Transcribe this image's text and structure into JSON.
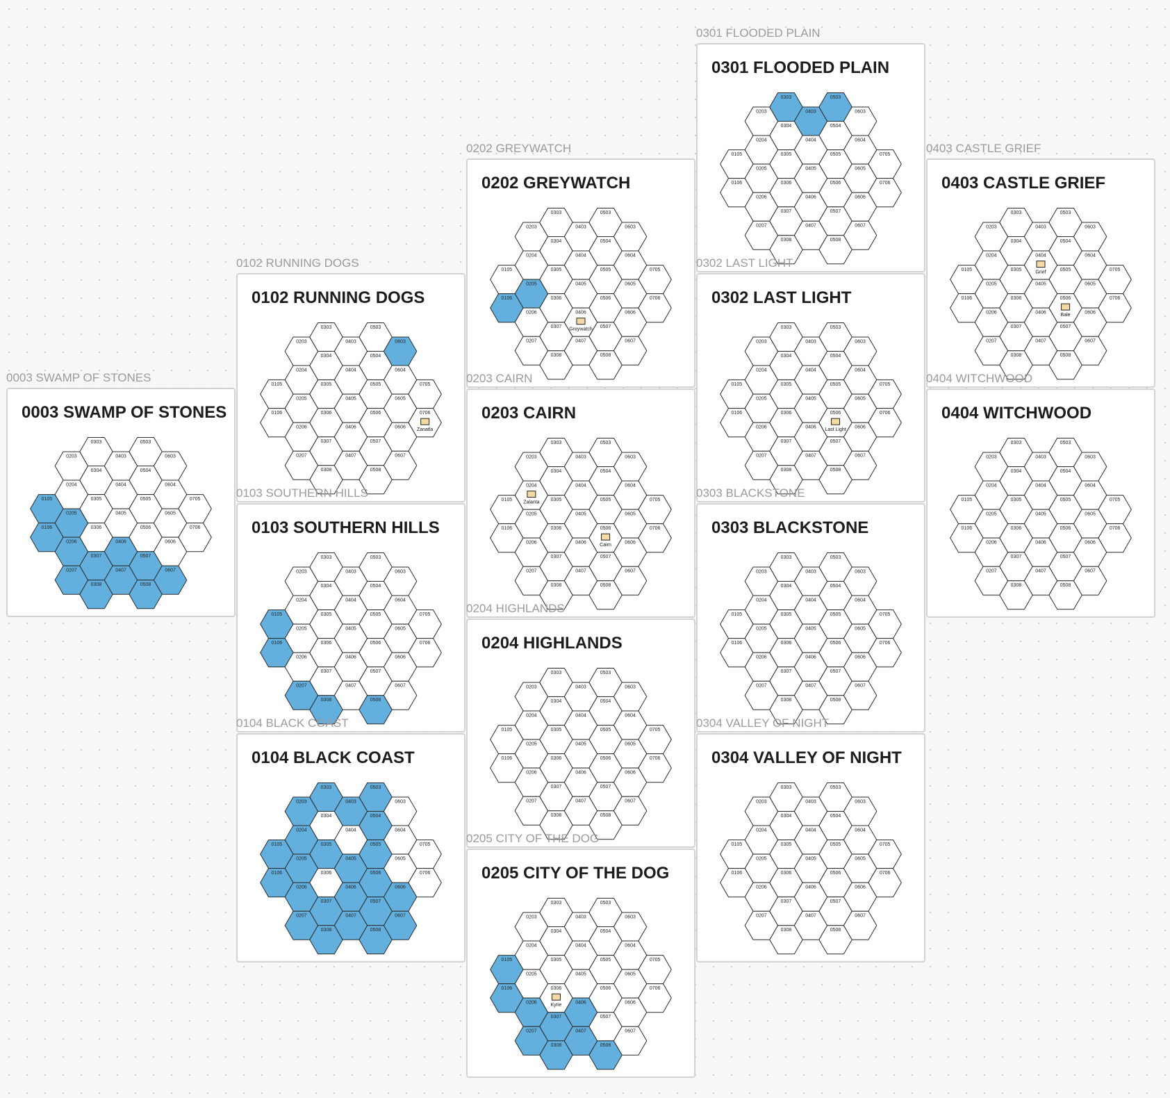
{
  "hex_labels": [
    "0105",
    "0106",
    "0203",
    "0204",
    "0205",
    "0206",
    "0207",
    "0303",
    "0304",
    "0305",
    "0306",
    "0307",
    "0308",
    "0403",
    "0404",
    "0405",
    "0406",
    "0407",
    "0503",
    "0504",
    "0505",
    "0506",
    "0507",
    "0508",
    "0603",
    "0604",
    "0605",
    "0606",
    "0607",
    "0705",
    "0706"
  ],
  "boards": [
    {
      "label": "0003 SWAMP OF STONES",
      "title": "0003 SWAMP OF STONES",
      "water": [
        "0105",
        "0106",
        "0205",
        "0206",
        "0207",
        "0307",
        "0308",
        "0406",
        "0407",
        "0507",
        "0508",
        "0607"
      ],
      "places": []
    },
    {
      "label": "0102 RUNNING DOGS",
      "title": "0102 RUNNING DOGS",
      "water": [
        "0603"
      ],
      "places": [
        {
          "hex": "0706",
          "name": "Zanatla"
        }
      ]
    },
    {
      "label": "0103 SOUTHERN HILLS",
      "title": "0103 SOUTHERN HILLS",
      "water": [
        "0105",
        "0106",
        "0207",
        "0308",
        "0508"
      ],
      "places": []
    },
    {
      "label": "0104 BLACK COAST",
      "title": "0104 BLACK COAST",
      "water": [
        "0303",
        "0503",
        "0203",
        "0403",
        "0504",
        "0204",
        "0105",
        "0305",
        "0505",
        "0205",
        "0405",
        "0106",
        "0506",
        "0206",
        "0406",
        "0606",
        "0307",
        "0507",
        "0207",
        "0407",
        "0607",
        "0308",
        "0508"
      ],
      "places": []
    },
    {
      "label": "0202 GREYWATCH",
      "title": "0202 GREYWATCH",
      "water": [
        "0106",
        "0205"
      ],
      "places": [
        {
          "hex": "0406",
          "name": "Greywatch"
        }
      ]
    },
    {
      "label": "0203 CAIRN",
      "title": "0203 CAIRN",
      "water": [],
      "places": [
        {
          "hex": "0204",
          "name": "Zalanta"
        },
        {
          "hex": "0506",
          "name": "Cairn"
        }
      ]
    },
    {
      "label": "0204 HIGHLANDS",
      "title": "0204 HIGHLANDS",
      "water": [],
      "places": []
    },
    {
      "label": "0205 CITY OF THE DOG",
      "title": "0205 CITY OF THE DOG",
      "water": [
        "0105",
        "0106",
        "0206",
        "0207",
        "0307",
        "0308",
        "0406",
        "0407",
        "0508"
      ],
      "places": [
        {
          "hex": "0306",
          "name": "Kyrie"
        }
      ]
    },
    {
      "label": "0301 FLOODED PLAIN",
      "title": "0301 FLOODED PLAIN",
      "water": [
        "0303",
        "0403",
        "0503"
      ],
      "places": []
    },
    {
      "label": "0302 LAST LIGHT",
      "title": "0302 LAST LIGHT",
      "water": [],
      "places": [
        {
          "hex": "0506",
          "name": "Last Light"
        }
      ]
    },
    {
      "label": "0303 BLACKSTONE",
      "title": "0303 BLACKSTONE",
      "water": [],
      "places": []
    },
    {
      "label": "0304 VALLEY OF NIGHT",
      "title": "0304 VALLEY OF NIGHT",
      "water": [],
      "places": []
    },
    {
      "label": "0403 CASTLE GRIEF",
      "title": "0403 CASTLE GRIEF",
      "water": [],
      "places": [
        {
          "hex": "0404",
          "name": "Grief"
        },
        {
          "hex": "0506",
          "name": "Bale"
        }
      ]
    },
    {
      "label": "0404 WITCHWOOD",
      "title": "0404 WITCHWOOD",
      "water": [],
      "places": []
    }
  ]
}
